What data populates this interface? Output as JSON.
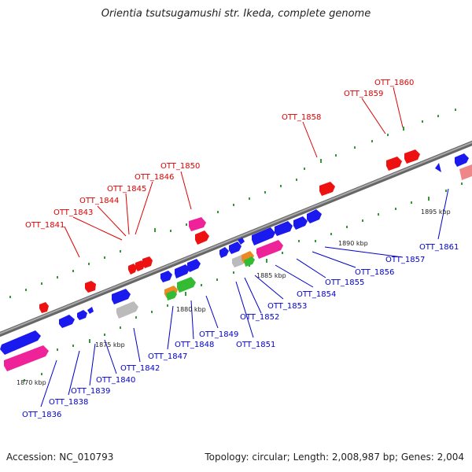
{
  "title": "Orientia tsutsugamushi str. Ikeda, complete genome",
  "footer": {
    "accession": "Accession: NC_010793",
    "summary": "Topology: circular; Length: 2,008,987 bp; Genes: 2,004"
  },
  "colors": {
    "forward_labels": "#dd0000",
    "reverse_labels": "#0000cc",
    "blue_gene": "#1a1aee",
    "red_gene": "#ee1111",
    "pink_gene": "#ee2299",
    "gray_gene": "#bbbbbb",
    "green_gene": "#33bb33",
    "orange_gene": "#ee8822",
    "backbone": "#888888",
    "tick_marks": "#339933"
  },
  "scale_ticks": [
    "1870 kbp",
    "1875 kbp",
    "1880 kbp",
    "1885 kbp",
    "1890 kbp",
    "1895 kbp"
  ],
  "forward_genes": [
    "OTT_1841",
    "OTT_1843",
    "OTT_1844",
    "OTT_1845",
    "OTT_1846",
    "OTT_1850",
    "OTT_1858",
    "OTT_1859",
    "OTT_1860"
  ],
  "reverse_genes": [
    "OTT_1836",
    "OTT_1838",
    "OTT_1839",
    "OTT_1840",
    "OTT_1842",
    "OTT_1847",
    "OTT_1848",
    "OTT_1849",
    "OTT_1851",
    "OTT_1852",
    "OTT_1853",
    "OTT_1854",
    "OTT_1855",
    "OTT_1856",
    "OTT_1857",
    "OTT_1861"
  ]
}
